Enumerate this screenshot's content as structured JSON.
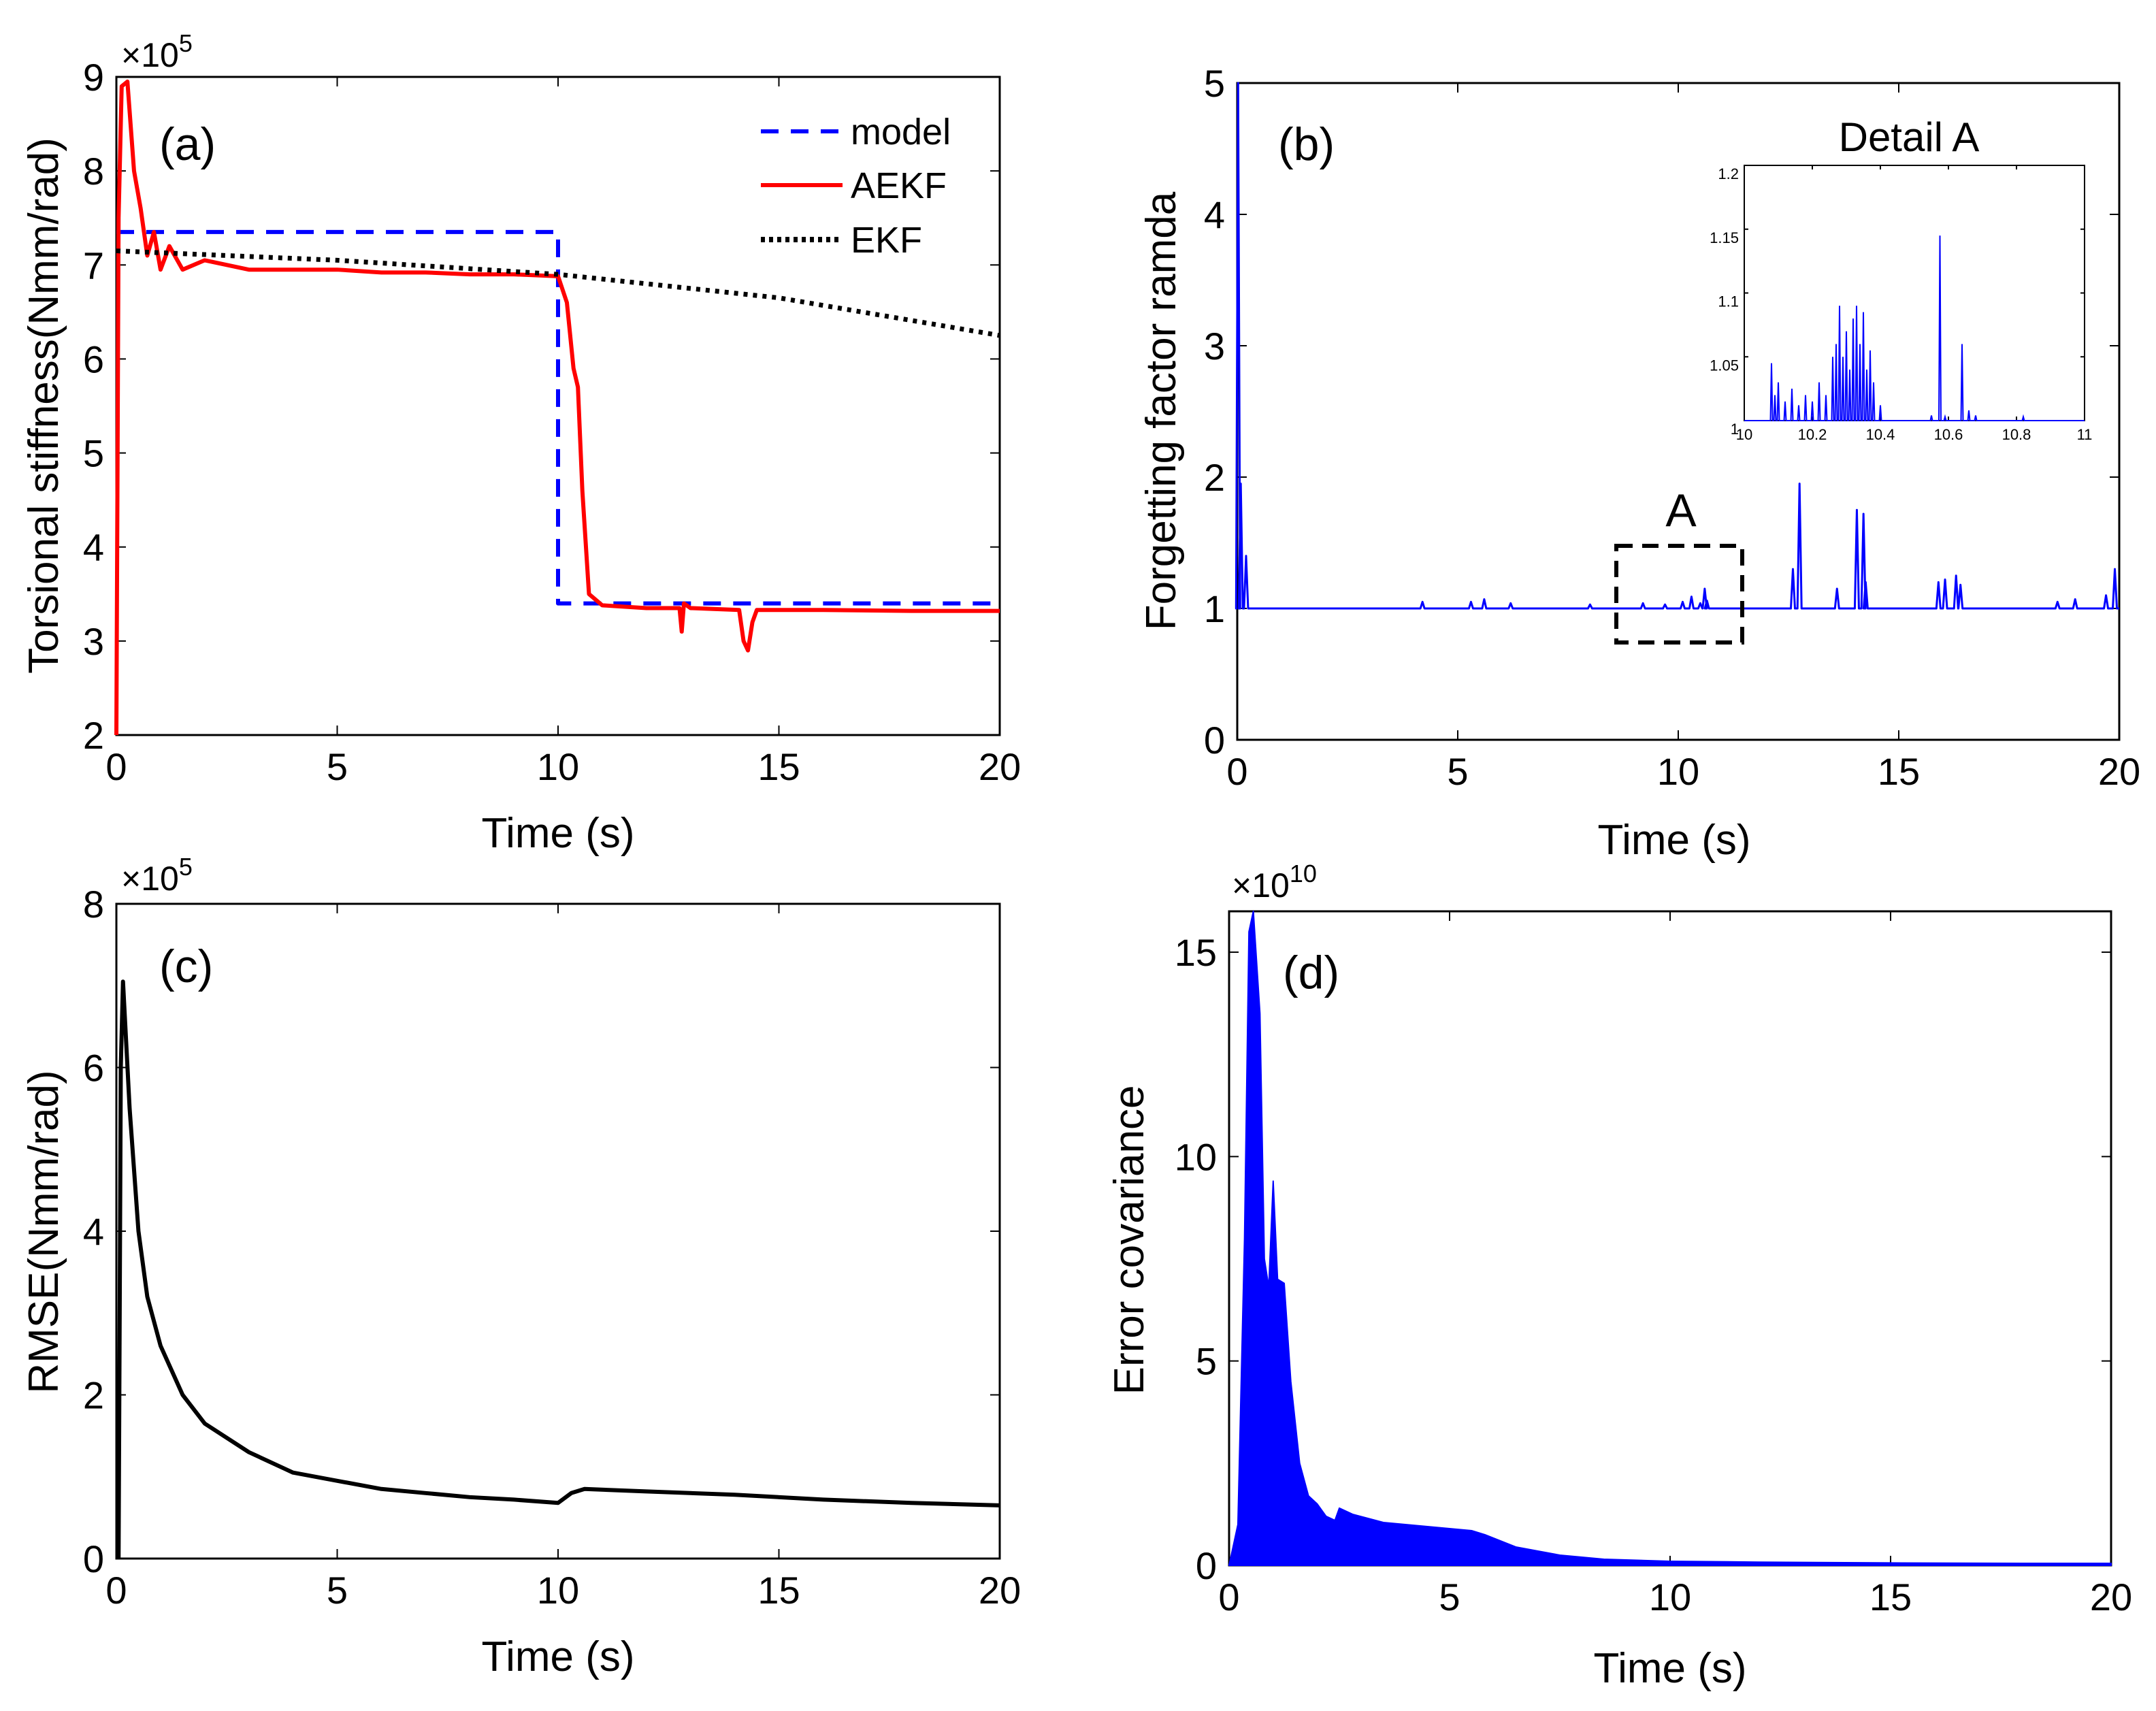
{
  "chart_data": [
    {
      "panel_label": "(a)",
      "type": "line",
      "xlabel": "Time (s)",
      "ylabel": "Torsional stiffness(Nmm/rad)",
      "y_multiplier": "×10",
      "y_multiplier_exp": "5",
      "xlim": [
        0,
        20
      ],
      "ylim": [
        2,
        9
      ],
      "xticks": [
        "0",
        "5",
        "10",
        "15",
        "20"
      ],
      "yticks": [
        "2",
        "3",
        "4",
        "5",
        "6",
        "7",
        "8",
        "9"
      ],
      "legend_position": "top-right",
      "series": [
        {
          "name": "model",
          "color": "#0000ff",
          "style": "dashed",
          "points": [
            [
              0,
              7.35
            ],
            [
              10,
              7.35
            ],
            [
              10,
              3.4
            ],
            [
              20,
              3.4
            ]
          ]
        },
        {
          "name": "AEKF",
          "color": "#ff0000",
          "style": "solid",
          "points": [
            [
              0,
              2.0
            ],
            [
              0.05,
              7.5
            ],
            [
              0.12,
              8.9
            ],
            [
              0.25,
              8.95
            ],
            [
              0.4,
              8.0
            ],
            [
              0.55,
              7.6
            ],
            [
              0.7,
              7.1
            ],
            [
              0.85,
              7.35
            ],
            [
              1.0,
              6.95
            ],
            [
              1.2,
              7.2
            ],
            [
              1.5,
              6.95
            ],
            [
              2,
              7.05
            ],
            [
              3,
              6.95
            ],
            [
              4,
              6.95
            ],
            [
              5,
              6.95
            ],
            [
              6,
              6.92
            ],
            [
              7,
              6.92
            ],
            [
              8,
              6.9
            ],
            [
              9,
              6.9
            ],
            [
              10,
              6.88
            ],
            [
              10.2,
              6.6
            ],
            [
              10.35,
              5.9
            ],
            [
              10.45,
              5.7
            ],
            [
              10.55,
              4.6
            ],
            [
              10.7,
              3.5
            ],
            [
              11,
              3.38
            ],
            [
              12,
              3.35
            ],
            [
              12.75,
              3.35
            ],
            [
              12.8,
              3.1
            ],
            [
              12.85,
              3.4
            ],
            [
              13,
              3.35
            ],
            [
              14.1,
              3.33
            ],
            [
              14.2,
              3.0
            ],
            [
              14.3,
              2.9
            ],
            [
              14.4,
              3.2
            ],
            [
              14.5,
              3.33
            ],
            [
              16,
              3.33
            ],
            [
              18,
              3.32
            ],
            [
              20,
              3.32
            ]
          ]
        },
        {
          "name": "EKF",
          "color": "#000000",
          "style": "dotted",
          "points": [
            [
              0,
              7.15
            ],
            [
              5,
              7.05
            ],
            [
              10,
              6.9
            ],
            [
              15,
              6.65
            ],
            [
              20,
              6.25
            ]
          ]
        }
      ]
    },
    {
      "panel_label": "(b)",
      "type": "line",
      "xlabel": "Time (s)",
      "ylabel": "Forgetting factor ramda",
      "xlim": [
        0,
        20
      ],
      "ylim": [
        0,
        5
      ],
      "xticks": [
        "0",
        "5",
        "10",
        "15",
        "20"
      ],
      "yticks": [
        "0",
        "1",
        "2",
        "3",
        "4",
        "5"
      ],
      "annotation": "A",
      "series": [
        {
          "name": "",
          "color": "#0000ff",
          "style": "solid",
          "baseline": 1,
          "points": [
            [
              0.02,
              5.0
            ],
            [
              0.08,
              1.95
            ],
            [
              0.2,
              1.4
            ],
            [
              4.2,
              1.05
            ],
            [
              5.3,
              1.05
            ],
            [
              5.6,
              1.07
            ],
            [
              6.2,
              1.04
            ],
            [
              8.0,
              1.03
            ],
            [
              9.2,
              1.04
            ],
            [
              9.7,
              1.03
            ],
            [
              10.1,
              1.05
            ],
            [
              10.3,
              1.09
            ],
            [
              10.5,
              1.04
            ],
            [
              10.6,
              1.15
            ],
            [
              10.65,
              1.06
            ],
            [
              12.6,
              1.3
            ],
            [
              12.75,
              1.95
            ],
            [
              13.6,
              1.15
            ],
            [
              14.05,
              1.75
            ],
            [
              14.2,
              1.72
            ],
            [
              14.25,
              1.2
            ],
            [
              15.9,
              1.2
            ],
            [
              16.05,
              1.22
            ],
            [
              16.3,
              1.25
            ],
            [
              16.4,
              1.18
            ],
            [
              18.6,
              1.05
            ],
            [
              19.0,
              1.07
            ],
            [
              19.7,
              1.1
            ],
            [
              19.9,
              1.3
            ]
          ]
        }
      ],
      "inset": {
        "title": "Detail A",
        "xlim": [
          10,
          11
        ],
        "ylim": [
          1,
          1.2
        ],
        "xticks": [
          "10",
          "10.2",
          "10.4",
          "10.6",
          "10.8",
          "11"
        ],
        "yticks": [
          "1",
          "1.05",
          "1.1",
          "1.15",
          "1.2"
        ],
        "points": [
          [
            10.08,
            1.045
          ],
          [
            10.09,
            1.02
          ],
          [
            10.1,
            1.03
          ],
          [
            10.12,
            1.015
          ],
          [
            10.14,
            1.025
          ],
          [
            10.16,
            1.012
          ],
          [
            10.18,
            1.02
          ],
          [
            10.2,
            1.015
          ],
          [
            10.22,
            1.03
          ],
          [
            10.24,
            1.02
          ],
          [
            10.26,
            1.05
          ],
          [
            10.27,
            1.06
          ],
          [
            10.28,
            1.09
          ],
          [
            10.29,
            1.05
          ],
          [
            10.3,
            1.07
          ],
          [
            10.31,
            1.04
          ],
          [
            10.32,
            1.08
          ],
          [
            10.33,
            1.09
          ],
          [
            10.34,
            1.06
          ],
          [
            10.35,
            1.085
          ],
          [
            10.36,
            1.04
          ],
          [
            10.37,
            1.055
          ],
          [
            10.38,
            1.03
          ],
          [
            10.4,
            1.012
          ],
          [
            10.55,
            1.004
          ],
          [
            10.575,
            1.145
          ],
          [
            10.59,
            1.003
          ],
          [
            10.64,
            1.06
          ],
          [
            10.66,
            1.008
          ],
          [
            10.68,
            1.004
          ],
          [
            10.82,
            1.003
          ]
        ]
      }
    },
    {
      "panel_label": "(c)",
      "type": "line",
      "xlabel": "Time (s)",
      "ylabel": "RMSE(Nmm/rad)",
      "y_multiplier": "×10",
      "y_multiplier_exp": "5",
      "xlim": [
        0,
        20
      ],
      "ylim": [
        0,
        8
      ],
      "xticks": [
        "0",
        "5",
        "10",
        "15",
        "20"
      ],
      "yticks": [
        "0",
        "2",
        "4",
        "6",
        "8"
      ],
      "series": [
        {
          "name": "",
          "color": "#000000",
          "style": "solid",
          "points": [
            [
              0.05,
              0
            ],
            [
              0.1,
              6.0
            ],
            [
              0.15,
              7.05
            ],
            [
              0.3,
              5.5
            ],
            [
              0.5,
              4.0
            ],
            [
              0.7,
              3.2
            ],
            [
              1,
              2.6
            ],
            [
              1.5,
              2.0
            ],
            [
              2,
              1.65
            ],
            [
              3,
              1.3
            ],
            [
              4,
              1.05
            ],
            [
              5,
              0.95
            ],
            [
              6,
              0.85
            ],
            [
              7,
              0.8
            ],
            [
              8,
              0.75
            ],
            [
              9,
              0.72
            ],
            [
              10,
              0.68
            ],
            [
              10.3,
              0.8
            ],
            [
              10.6,
              0.85
            ],
            [
              12,
              0.82
            ],
            [
              14,
              0.78
            ],
            [
              16,
              0.72
            ],
            [
              18,
              0.68
            ],
            [
              20,
              0.65
            ]
          ]
        }
      ]
    },
    {
      "panel_label": "(d)",
      "type": "area",
      "xlabel": "Time (s)",
      "ylabel": "Error covariance",
      "y_multiplier": "×10",
      "y_multiplier_exp": "10",
      "xlim": [
        0,
        20
      ],
      "ylim": [
        0,
        16
      ],
      "xticks": [
        "0",
        "5",
        "10",
        "15",
        "20"
      ],
      "yticks": [
        "0",
        "5",
        "10",
        "15"
      ],
      "series": [
        {
          "name": "",
          "color": "#0000ff",
          "style": "filled",
          "points": [
            [
              0,
              0
            ],
            [
              0.2,
              1.0
            ],
            [
              0.35,
              8.0
            ],
            [
              0.45,
              15.5
            ],
            [
              0.55,
              16
            ],
            [
              0.7,
              13.5
            ],
            [
              0.8,
              7.5
            ],
            [
              0.9,
              6.8
            ],
            [
              1.0,
              9.4
            ],
            [
              1.1,
              7.0
            ],
            [
              1.25,
              6.9
            ],
            [
              1.4,
              4.5
            ],
            [
              1.6,
              2.5
            ],
            [
              1.8,
              1.7
            ],
            [
              2.0,
              1.5
            ],
            [
              2.2,
              1.2
            ],
            [
              2.4,
              1.1
            ],
            [
              2.5,
              1.4
            ],
            [
              2.8,
              1.25
            ],
            [
              3.5,
              1.05
            ],
            [
              4.5,
              0.95
            ],
            [
              5.5,
              0.85
            ],
            [
              5.8,
              0.75
            ],
            [
              6.5,
              0.45
            ],
            [
              7.5,
              0.25
            ],
            [
              8.5,
              0.15
            ],
            [
              10,
              0.1
            ],
            [
              12,
              0.08
            ],
            [
              15,
              0.06
            ],
            [
              18,
              0.05
            ],
            [
              20,
              0.05
            ]
          ]
        }
      ]
    }
  ]
}
